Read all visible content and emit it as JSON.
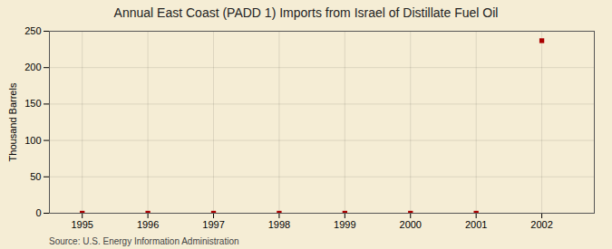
{
  "chart_data": {
    "type": "scatter",
    "title": "Annual East Coast (PADD 1) Imports from Israel of Distillate Fuel Oil",
    "ylabel": "Thousand Barrels",
    "source": "Source: U.S. Energy Information Administration",
    "x": [
      1995,
      1996,
      1997,
      1998,
      1999,
      2000,
      2001,
      2002
    ],
    "values": [
      0,
      0,
      0,
      0,
      0,
      0,
      0,
      237
    ],
    "color": "#AA0000",
    "marker": "square",
    "xlim": [
      1994.5,
      2002.8
    ],
    "ylim": [
      0,
      250
    ],
    "xticks": [
      1995,
      1996,
      1997,
      1998,
      1999,
      2000,
      2001,
      2002
    ],
    "yticks": [
      0,
      50,
      100,
      150,
      200,
      250
    ],
    "grid": true
  }
}
